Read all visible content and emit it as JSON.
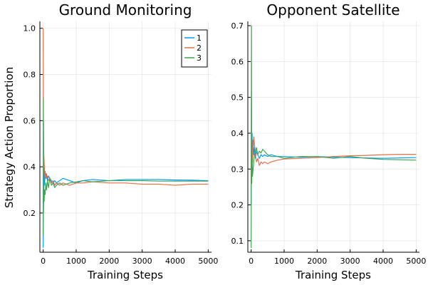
{
  "chart_data": [
    {
      "type": "line",
      "title": "Ground Monitoring",
      "xlabel": "Training Steps",
      "ylabel": "Strategy Action Proportion",
      "xlim": [
        -100,
        5100
      ],
      "ylim": [
        0.03,
        1.03
      ],
      "xticks": [
        0,
        1000,
        2000,
        3000,
        4000,
        5000
      ],
      "yticks": [
        0.2,
        0.4,
        0.6,
        0.8,
        1.0
      ],
      "ytick_labels": [
        "0.2",
        "0.4",
        "0.6",
        "0.8",
        "1.0"
      ],
      "grid": true,
      "legend": "top-right",
      "series": [
        {
          "name": "1",
          "color": "#009AFA",
          "x": [
            1,
            10,
            20,
            30,
            40,
            60,
            80,
            100,
            130,
            160,
            200,
            250,
            300,
            350,
            400,
            500,
            600,
            800,
            1000,
            1200,
            1500,
            2000,
            2500,
            3000,
            3500,
            4000,
            4500,
            5000
          ],
          "y": [
            0.05,
            0.6,
            0.3,
            0.4,
            0.32,
            0.38,
            0.35,
            0.37,
            0.34,
            0.36,
            0.35,
            0.34,
            0.33,
            0.34,
            0.33,
            0.34,
            0.35,
            0.34,
            0.33,
            0.34,
            0.345,
            0.34,
            0.345,
            0.345,
            0.345,
            0.343,
            0.342,
            0.34
          ]
        },
        {
          "name": "2",
          "color": "#E36F47",
          "x": [
            1,
            5,
            10,
            20,
            30,
            40,
            60,
            80,
            100,
            130,
            160,
            200,
            250,
            300,
            350,
            400,
            500,
            600,
            800,
            1000,
            1200,
            1500,
            2000,
            2500,
            3000,
            3500,
            4000,
            4500,
            5000
          ],
          "y": [
            1.0,
            0.7,
            0.5,
            0.45,
            0.42,
            0.38,
            0.35,
            0.37,
            0.35,
            0.36,
            0.34,
            0.35,
            0.33,
            0.34,
            0.32,
            0.33,
            0.32,
            0.33,
            0.32,
            0.33,
            0.33,
            0.335,
            0.33,
            0.33,
            0.325,
            0.325,
            0.32,
            0.325,
            0.325
          ]
        },
        {
          "name": "3",
          "color": "#3EA44E",
          "x": [
            1,
            5,
            10,
            20,
            30,
            40,
            60,
            80,
            100,
            130,
            160,
            200,
            250,
            300,
            350,
            400,
            500,
            600,
            800,
            1000,
            1200,
            1500,
            2000,
            2500,
            3000,
            3500,
            4000,
            4500,
            5000
          ],
          "y": [
            0.1,
            0.7,
            0.2,
            0.3,
            0.25,
            0.3,
            0.28,
            0.33,
            0.3,
            0.34,
            0.31,
            0.35,
            0.32,
            0.33,
            0.31,
            0.32,
            0.33,
            0.32,
            0.33,
            0.335,
            0.34,
            0.335,
            0.34,
            0.34,
            0.34,
            0.338,
            0.338,
            0.338,
            0.338
          ]
        }
      ]
    },
    {
      "type": "line",
      "title": "Opponent Satellite",
      "xlabel": "Training Steps",
      "ylabel": "",
      "xlim": [
        -100,
        5100
      ],
      "ylim": [
        0.068,
        0.712
      ],
      "xticks": [
        0,
        1000,
        2000,
        3000,
        4000,
        5000
      ],
      "yticks": [
        0.1,
        0.2,
        0.3,
        0.4,
        0.5,
        0.6,
        0.7
      ],
      "ytick_labels": [
        "0.1",
        "0.2",
        "0.3",
        "0.4",
        "0.5",
        "0.6",
        "0.7"
      ],
      "grid": true,
      "legend": "none",
      "series": [
        {
          "name": "1",
          "color": "#009AFA",
          "x": [
            1,
            10,
            20,
            30,
            40,
            60,
            80,
            100,
            130,
            160,
            200,
            250,
            300,
            350,
            400,
            500,
            600,
            800,
            1000,
            1500,
            2000,
            2500,
            3000,
            3500,
            4000,
            4500,
            5000
          ],
          "y": [
            0.2,
            0.5,
            0.3,
            0.4,
            0.32,
            0.38,
            0.34,
            0.36,
            0.33,
            0.35,
            0.34,
            0.33,
            0.34,
            0.335,
            0.34,
            0.335,
            0.34,
            0.335,
            0.335,
            0.333,
            0.335,
            0.333,
            0.332,
            0.331,
            0.33,
            0.331,
            0.332
          ]
        },
        {
          "name": "2",
          "color": "#E36F47",
          "x": [
            1,
            10,
            20,
            30,
            40,
            60,
            80,
            100,
            130,
            160,
            200,
            250,
            300,
            350,
            400,
            500,
            600,
            800,
            1000,
            1500,
            2000,
            2500,
            3000,
            3500,
            4000,
            4500,
            5000
          ],
          "y": [
            0.25,
            0.45,
            0.35,
            0.38,
            0.32,
            0.36,
            0.39,
            0.37,
            0.34,
            0.32,
            0.33,
            0.31,
            0.32,
            0.315,
            0.32,
            0.315,
            0.32,
            0.325,
            0.328,
            0.33,
            0.332,
            0.335,
            0.337,
            0.338,
            0.34,
            0.341,
            0.341
          ]
        },
        {
          "name": "3",
          "color": "#3EA44E",
          "x": [
            1,
            10,
            20,
            30,
            40,
            60,
            80,
            100,
            130,
            160,
            200,
            250,
            300,
            350,
            400,
            500,
            600,
            800,
            1000,
            1500,
            2000,
            2500,
            3000,
            3500,
            4000,
            4500,
            5000
          ],
          "y": [
            0.08,
            0.7,
            0.26,
            0.33,
            0.28,
            0.3,
            0.32,
            0.34,
            0.35,
            0.36,
            0.34,
            0.35,
            0.345,
            0.355,
            0.35,
            0.34,
            0.335,
            0.335,
            0.33,
            0.335,
            0.335,
            0.33,
            0.335,
            0.33,
            0.327,
            0.326,
            0.325
          ]
        }
      ]
    }
  ]
}
